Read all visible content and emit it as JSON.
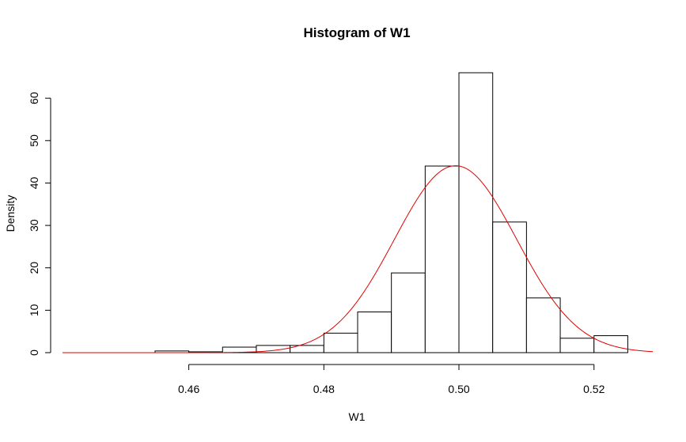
{
  "chart_data": {
    "type": "bar",
    "title": "Histogram of W1",
    "xlabel": "W1",
    "ylabel": "Density",
    "xlim": [
      0.4413,
      0.5287
    ],
    "ylim": [
      0,
      66
    ],
    "xticks": [
      0.46,
      0.48,
      0.5,
      0.52
    ],
    "xtick_labels": [
      "0.46",
      "0.48",
      "0.50",
      "0.52"
    ],
    "yticks": [
      0,
      10,
      20,
      30,
      40,
      50,
      60
    ],
    "ytick_labels": [
      "0",
      "10",
      "20",
      "30",
      "40",
      "50",
      "60"
    ],
    "bin_edges": [
      0.455,
      0.46,
      0.465,
      0.47,
      0.475,
      0.48,
      0.485,
      0.49,
      0.495,
      0.5,
      0.505,
      0.51,
      0.515,
      0.52,
      0.525
    ],
    "values": [
      0.4,
      0.2,
      1.3,
      1.7,
      1.7,
      4.6,
      9.6,
      18.8,
      44,
      66,
      30.8,
      12.9,
      3.4,
      4
    ],
    "density_curve": {
      "mean": 0.4995,
      "sd": 0.00905,
      "color": "#e00000"
    },
    "grid": false,
    "bar_fill": "#ffffff",
    "bar_stroke": "#000000"
  }
}
